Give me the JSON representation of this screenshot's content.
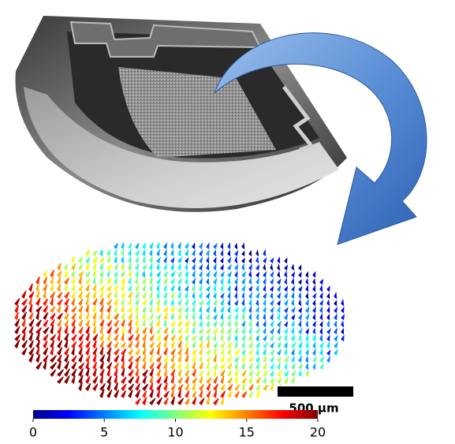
{
  "scale_bar": {
    "label": "500 µm"
  },
  "colorbar": {
    "lim": [
      0,
      20
    ],
    "ticks": [
      0,
      5,
      10,
      15,
      20
    ]
  }
}
